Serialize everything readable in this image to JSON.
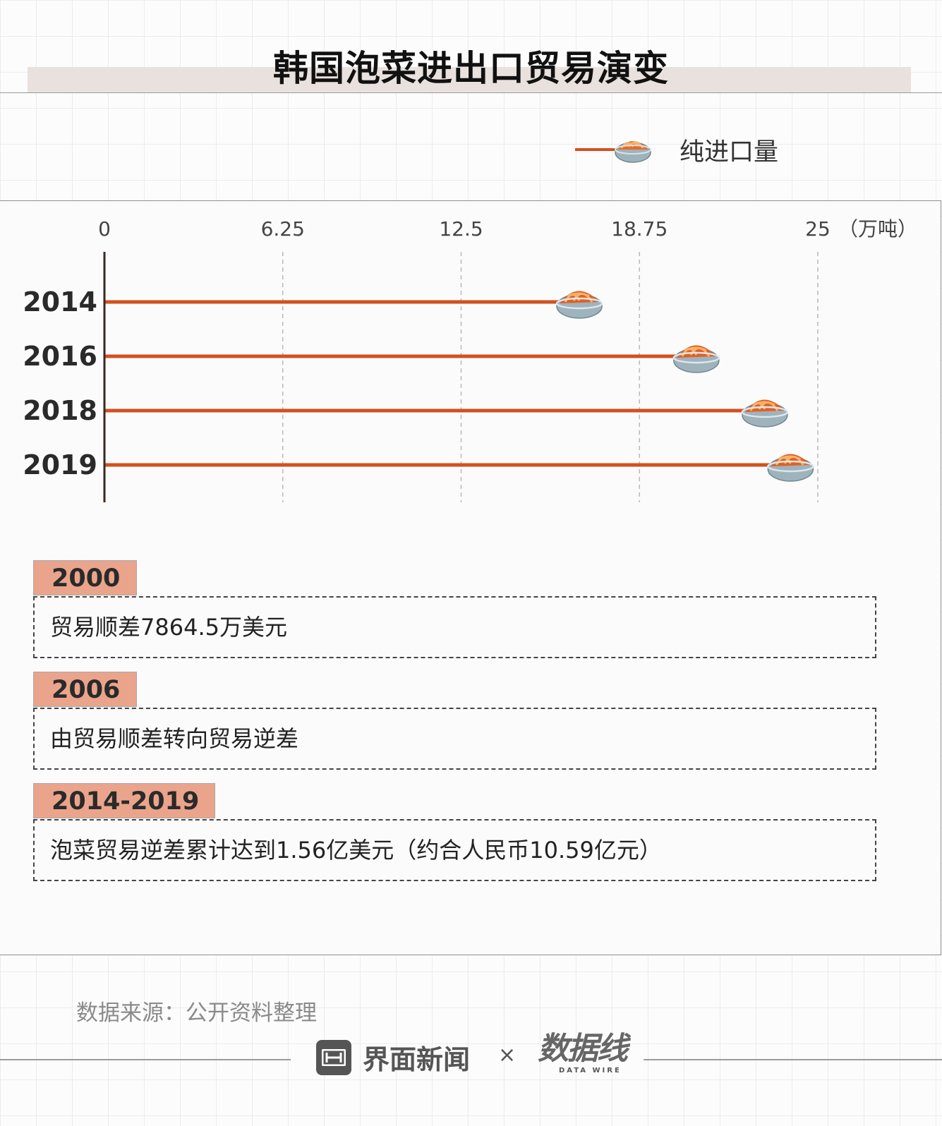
{
  "title": "韩国泡菜进出口贸易演变",
  "legend": {
    "label": "纯进口量",
    "line_color": "#d3501f"
  },
  "colors": {
    "bar": "#d3501f",
    "tag_bg": "#eaa48c",
    "axis": "#3a2a22"
  },
  "chart_data": {
    "type": "bar",
    "orientation": "horizontal",
    "categories": [
      "2014",
      "2016",
      "2018",
      "2019"
    ],
    "series": [
      {
        "name": "纯进口量",
        "values": [
          16.1,
          20.2,
          22.6,
          23.5
        ]
      }
    ],
    "xlim": [
      0,
      25
    ],
    "xticks": [
      "0",
      "6.25",
      "12.5",
      "18.75",
      "25"
    ],
    "xunit": "（万吨）",
    "grid": "vertical dashed",
    "marker": "kimchi-bowl-icon"
  },
  "notes": [
    {
      "year": "2000",
      "text": "贸易顺差7864.5万美元"
    },
    {
      "year": "2006",
      "text": "由贸易顺差转向贸易逆差"
    },
    {
      "year": "2014-2019",
      "text": "泡菜贸易逆差累计达到1.56亿美元（约合人民币10.59亿元）"
    }
  ],
  "source": "数据来源：公开资料整理",
  "footer": {
    "brand": "界面新闻",
    "times": "×",
    "partner": "数据线",
    "partner_sub": "DATA WIRE"
  }
}
